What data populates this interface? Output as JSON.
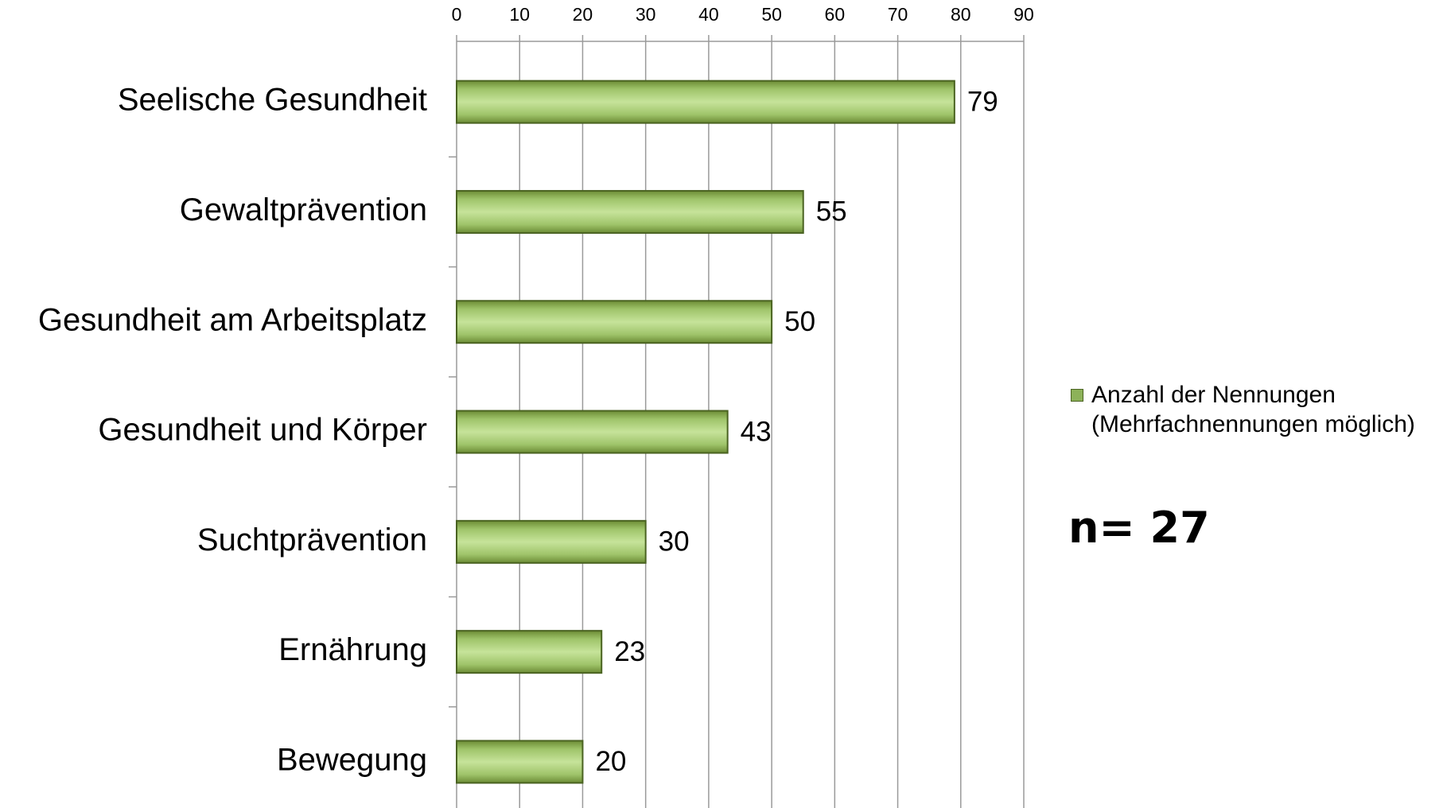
{
  "chart_data": {
    "type": "bar",
    "orientation": "horizontal",
    "categories": [
      "Seelische Gesundheit",
      "Gewaltprävention",
      "Gesundheit am Arbeitsplatz",
      "Gesundheit und Körper",
      "Suchtprävention",
      "Ernährung",
      "Bewegung"
    ],
    "series": [
      {
        "name": "Anzahl der Nennungen (Mehrfachnennungen möglich)",
        "color": "#8db259",
        "values": [
          79,
          55,
          50,
          43,
          30,
          23,
          20
        ]
      }
    ],
    "xlim": [
      0,
      90
    ],
    "xticks": [
      0,
      10,
      20,
      30,
      40,
      50,
      60,
      70,
      80,
      90
    ],
    "grid": true,
    "legend": "right",
    "annotations": [
      "n= 27"
    ]
  }
}
